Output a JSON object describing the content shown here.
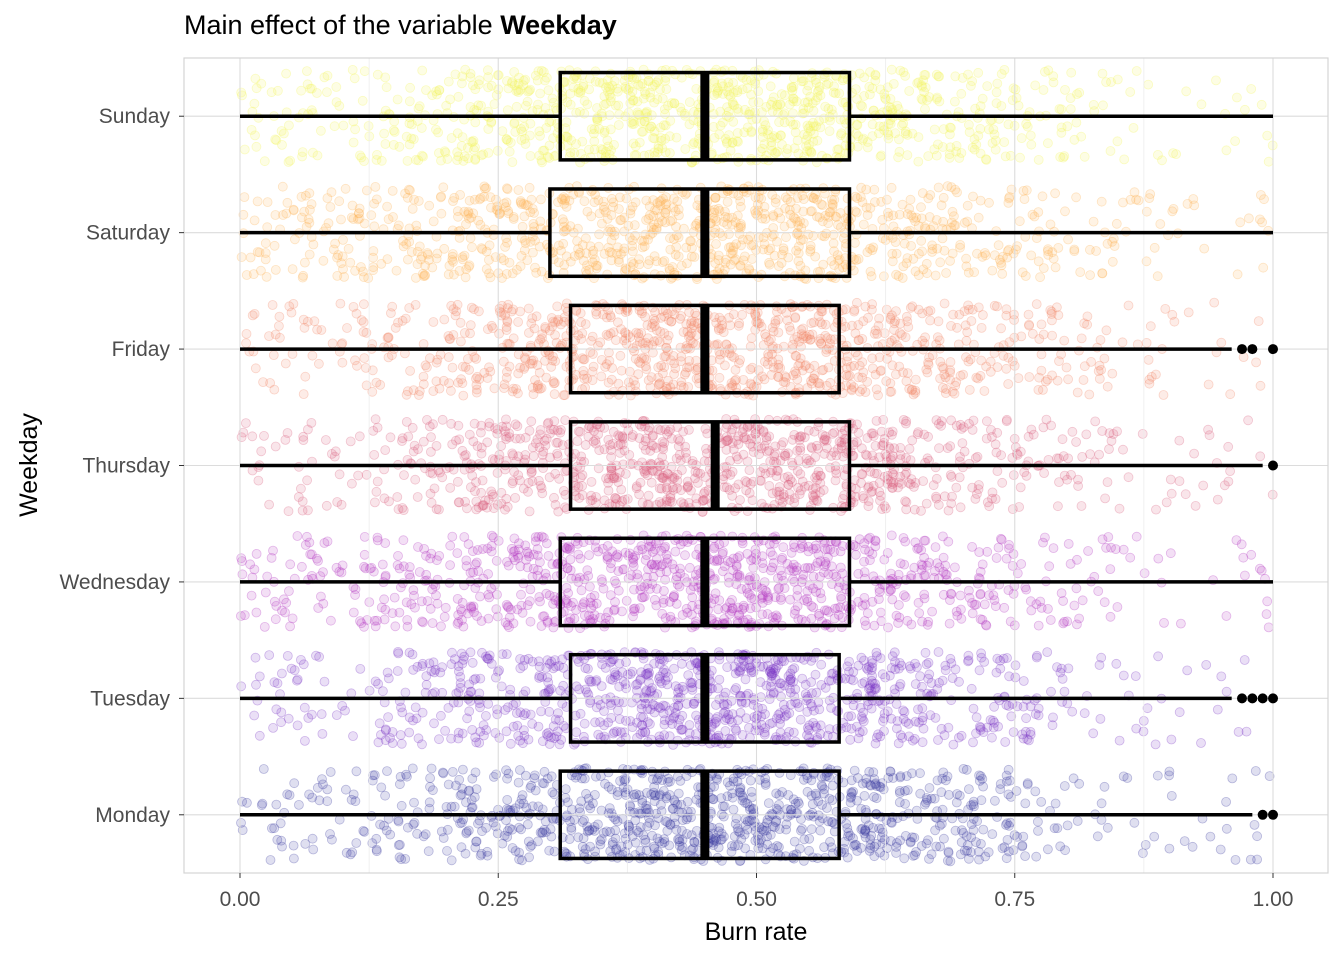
{
  "title": {
    "prefix": "Main effect of the variable ",
    "bold": "Weekday"
  },
  "chart_data": {
    "type": "boxplot",
    "orientation": "horizontal",
    "xlabel": "Burn rate",
    "ylabel": "Weekday",
    "xlim": [
      -0.105,
      1.055
    ],
    "x_ticks": [
      0.0,
      0.25,
      0.5,
      0.75,
      1.0
    ],
    "x_tick_labels": [
      "0.00",
      "0.25",
      "0.50",
      "0.75",
      "1.00"
    ],
    "grid": true,
    "legend": "none",
    "jittered_points": true,
    "categories": [
      "Monday",
      "Tuesday",
      "Wednesday",
      "Thursday",
      "Friday",
      "Saturday",
      "Sunday"
    ],
    "colors": [
      "#3b3ba0",
      "#7a35c4",
      "#b236c2",
      "#d9607f",
      "#f28a6a",
      "#fdb55a",
      "#f2f55a"
    ],
    "boxes": [
      {
        "day": "Monday",
        "min": 0.0,
        "q1": 0.31,
        "median": 0.45,
        "q3": 0.58,
        "max": 0.98,
        "outliers": [
          0.99,
          1.0
        ]
      },
      {
        "day": "Tuesday",
        "min": 0.0,
        "q1": 0.32,
        "median": 0.45,
        "q3": 0.58,
        "max": 0.96,
        "outliers": [
          0.97,
          0.98,
          0.99,
          1.0
        ]
      },
      {
        "day": "Wednesday",
        "min": 0.0,
        "q1": 0.31,
        "median": 0.45,
        "q3": 0.59,
        "max": 1.0,
        "outliers": []
      },
      {
        "day": "Thursday",
        "min": 0.0,
        "q1": 0.32,
        "median": 0.46,
        "q3": 0.59,
        "max": 0.99,
        "outliers": [
          1.0
        ]
      },
      {
        "day": "Friday",
        "min": 0.0,
        "q1": 0.32,
        "median": 0.45,
        "q3": 0.58,
        "max": 0.96,
        "outliers": [
          0.97,
          0.98,
          1.0
        ]
      },
      {
        "day": "Saturday",
        "min": 0.0,
        "q1": 0.3,
        "median": 0.45,
        "q3": 0.59,
        "max": 1.0,
        "outliers": []
      },
      {
        "day": "Sunday",
        "min": 0.0,
        "q1": 0.31,
        "median": 0.45,
        "q3": 0.59,
        "max": 1.0,
        "outliers": []
      }
    ]
  }
}
